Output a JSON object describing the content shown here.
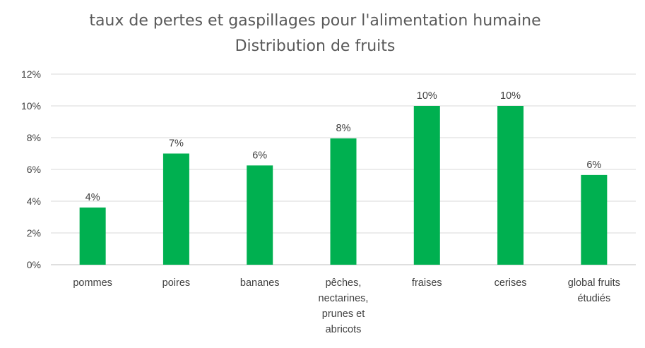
{
  "chart_data": {
    "type": "bar",
    "title": "taux de pertes et gaspillages pour l'alimentation humaine",
    "subtitle": "Distribution de fruits",
    "categories": [
      "pommes",
      "poires",
      "bananes",
      "pêches, nectarines, prunes et abricots",
      "fraises",
      "cerises",
      "global fruits étudiés"
    ],
    "category_lines": [
      [
        "pommes"
      ],
      [
        "poires"
      ],
      [
        "bananes"
      ],
      [
        "pêches,",
        "nectarines,",
        "prunes et",
        "abricots"
      ],
      [
        "fraises"
      ],
      [
        "cerises"
      ],
      [
        "global fruits",
        "étudiés"
      ]
    ],
    "values": [
      3.6,
      7.0,
      6.25,
      7.95,
      10.0,
      10.0,
      5.65
    ],
    "data_labels": [
      "4%",
      "7%",
      "6%",
      "8%",
      "10%",
      "10%",
      "6%"
    ],
    "yticks": [
      "0%",
      "2%",
      "4%",
      "6%",
      "8%",
      "10%",
      "12%"
    ],
    "ylim": [
      0,
      12
    ],
    "grid": true,
    "bar_color": "#00b050"
  }
}
